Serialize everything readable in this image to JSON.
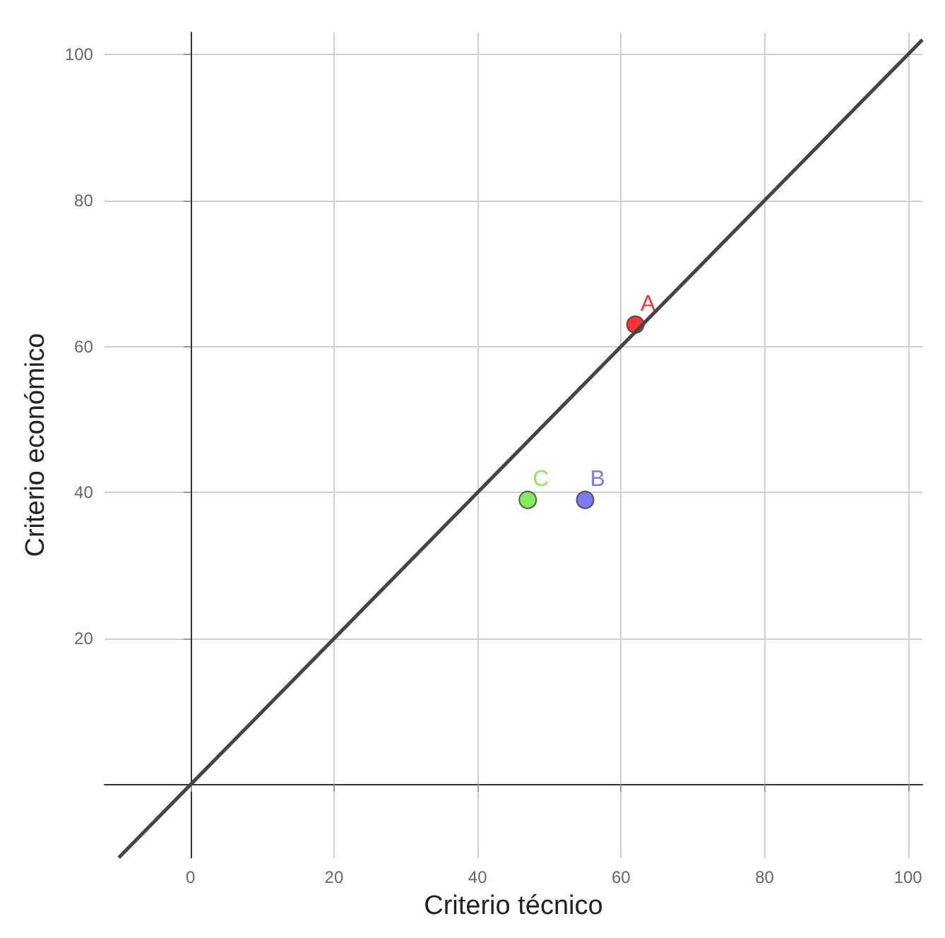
{
  "chart_data": {
    "type": "scatter",
    "xlabel": "Criterio técnico",
    "ylabel": "Criterio económico",
    "xlim": [
      -12,
      102
    ],
    "ylim": [
      -10,
      103
    ],
    "xticks": [
      0,
      20,
      40,
      60,
      80,
      100
    ],
    "yticks": [
      20,
      40,
      60,
      80,
      100
    ],
    "grid": true,
    "legend": false,
    "marker": "circle",
    "series": [
      {
        "type": "line",
        "x": [
          -10,
          102
        ],
        "values": [
          -10,
          102
        ],
        "color": "#444444",
        "marker": "none"
      },
      {
        "name": "A",
        "x": [
          62
        ],
        "values": [
          63
        ],
        "color": "#ff0000"
      },
      {
        "name": "B",
        "x": [
          55
        ],
        "values": [
          39
        ],
        "color": "#5b5bee"
      },
      {
        "name": "C",
        "x": [
          47
        ],
        "values": [
          39
        ],
        "color": "#66e633"
      }
    ]
  }
}
